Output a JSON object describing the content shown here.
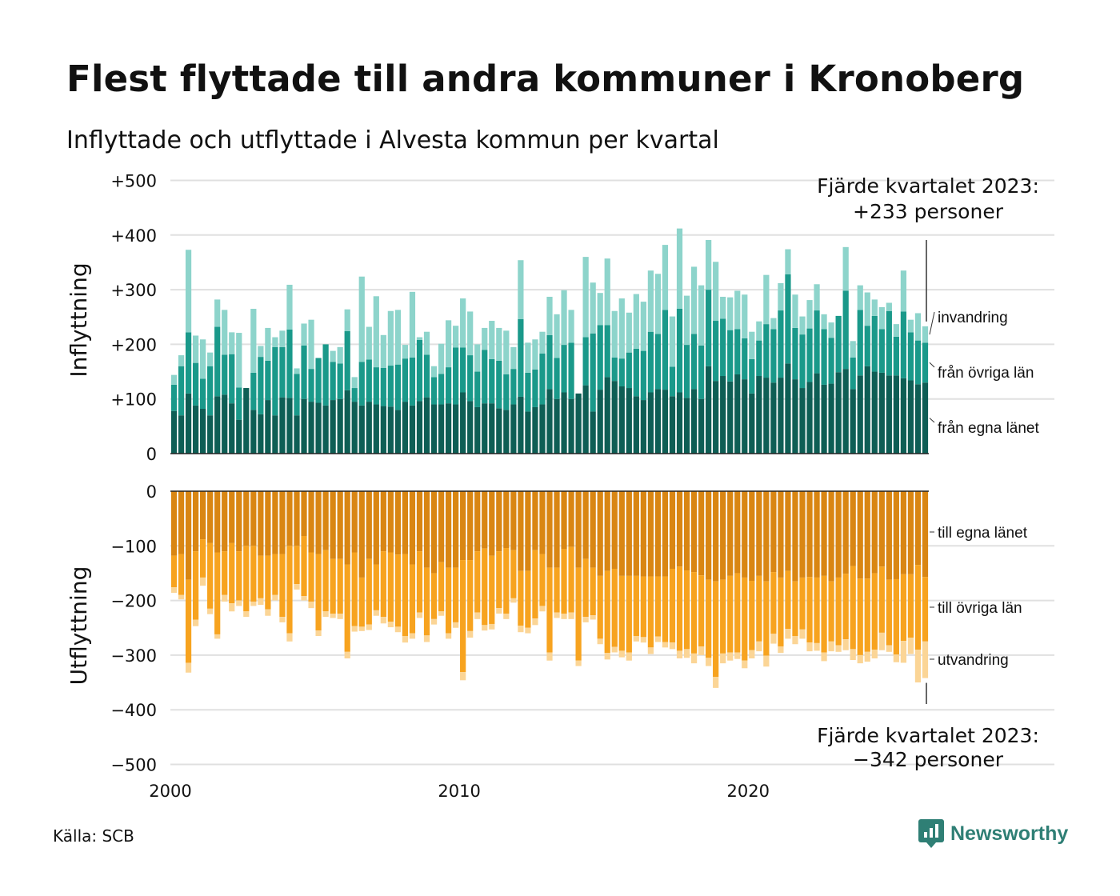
{
  "title": "Flest flyttade till andra kommuner i Kronoberg",
  "subtitle": "Inflyttade och utflyttade i Alvesta kommun per kvartal",
  "source": "Källa: SCB",
  "brand": "Newsworthy",
  "colors": {
    "in_own": "#0e5e55",
    "in_other": "#1a998a",
    "in_immig": "#8dd4cb",
    "out_own": "#d98613",
    "out_other": "#f7a31f",
    "out_emig": "#fbd596",
    "grid": "#e0e0e0",
    "brand": "#2f7f75"
  },
  "chart_data": {
    "type": "bar",
    "stacked": true,
    "x_start": "2000 Q1",
    "x_ticks": [
      "2000",
      "2010",
      "2020"
    ],
    "panels": [
      {
        "ylabel": "Inflyttning",
        "ylim": [
          0,
          500
        ],
        "yticks": [
          "0",
          "+100",
          "+200",
          "+300",
          "+400",
          "+500"
        ],
        "series": [
          {
            "name": "från egna länet",
            "values": [
              78,
              70,
              110,
              88,
              82,
              70,
              105,
              108,
              92,
              62,
              120,
              80,
              72,
              98,
              70,
              103,
              102,
              70,
              100,
              95,
              93,
              88,
              98,
              100,
              116,
              95,
              88,
              95,
              90,
              87,
              86,
              80,
              95,
              88,
              96,
              103,
              90,
              90,
              92,
              90,
              112,
              96,
              85,
              92,
              92,
              83,
              80,
              90,
              104,
              77,
              85,
              90,
              118,
              100,
              112,
              100,
              110,
              125,
              77,
              117,
              140,
              133,
              123,
              120,
              105,
              98,
              112,
              118,
              117,
              105,
              112,
              102,
              118,
              100,
              160,
              133,
              142,
              132,
              145,
              136,
              110,
              142,
              139,
              130,
              139,
              165,
              136,
              120,
              131,
              147,
              126,
              128,
              149,
              155,
              118,
              143,
              160,
              150,
              148,
              143,
              143,
              138,
              134,
              127,
              130
            ]
          },
          {
            "name": "från övriga län",
            "values": [
              48,
              90,
              112,
              78,
              55,
              90,
              127,
              73,
              90,
              59,
              0,
              68,
              105,
              72,
              125,
              92,
              125,
              76,
              98,
              60,
              82,
              112,
              70,
              65,
              108,
              25,
              80,
              77,
              68,
              70,
              75,
              83,
              79,
              88,
              112,
              78,
              50,
              56,
              66,
              104,
              82,
              84,
              65,
              98,
              81,
              87,
              65,
              65,
              142,
              71,
              69,
              93,
              99,
              75,
              87,
              103,
              0,
              88,
              143,
              118,
              95,
              43,
              51,
              65,
              87,
              90,
              111,
              101,
              146,
              54,
              153,
              97,
              101,
              98,
              140,
              110,
              105,
              94,
              83,
              75,
              63,
              65,
              98,
              98,
              123,
              163,
              94,
              98,
              98,
              115,
              102,
              84,
              103,
              143,
              58,
              120,
              74,
              102,
              80,
              118,
              71,
              122,
              88,
              80,
              73
            ]
          },
          {
            "name": "invandring",
            "values": [
              18,
              20,
              151,
              50,
              72,
              25,
              50,
              82,
              40,
              100,
              0,
              117,
              20,
              60,
              18,
              30,
              82,
              10,
              40,
              90,
              0,
              0,
              20,
              30,
              40,
              20,
              156,
              60,
              130,
              60,
              100,
              100,
              25,
              120,
              5,
              42,
              20,
              55,
              86,
              40,
              90,
              80,
              50,
              40,
              70,
              60,
              80,
              40,
              108,
              55,
              55,
              40,
              70,
              80,
              100,
              60,
              0,
              147,
              93,
              59,
              122,
              85,
              110,
              73,
              100,
              90,
              112,
              110,
              119,
              92,
              147,
              90,
              123,
              110,
              91,
              108,
              40,
              60,
              70,
              80,
              50,
              35,
              90,
              20,
              50,
              46,
              61,
              33,
              52,
              48,
              27,
              28,
              0,
              80,
              30,
              45,
              61,
              30,
              40,
              15,
              23,
              75,
              23,
              50,
              30
            ]
          }
        ]
      },
      {
        "ylabel": "Utflyttning",
        "ylim": [
          -500,
          0
        ],
        "yticks": [
          "0",
          "−100",
          "−200",
          "−300",
          "−400",
          "−500"
        ],
        "series": [
          {
            "name": "till egna länet",
            "values": [
              -118,
              -115,
              -162,
              -110,
              -88,
              -95,
              -112,
              -110,
              -95,
              -110,
              -100,
              -100,
              -118,
              -118,
              -115,
              -115,
              -100,
              -100,
              -82,
              -112,
              -115,
              -108,
              -124,
              -124,
              -134,
              -112,
              -158,
              -124,
              -134,
              -110,
              -112,
              -116,
              -115,
              -134,
              -110,
              -140,
              -150,
              -130,
              -140,
              -140,
              -126,
              -126,
              -110,
              -105,
              -118,
              -110,
              -104,
              -108,
              -146,
              -146,
              -108,
              -115,
              -140,
              -140,
              -106,
              -102,
              -140,
              -124,
              -140,
              -155,
              -146,
              -142,
              -155,
              -155,
              -155,
              -156,
              -156,
              -156,
              -156,
              -142,
              -138,
              -145,
              -148,
              -154,
              -162,
              -165,
              -162,
              -155,
              -150,
              -158,
              -164,
              -155,
              -165,
              -148,
              -158,
              -146,
              -165,
              -158,
              -157,
              -158,
              -155,
              -165,
              -158,
              -151,
              -137,
              -160,
              -160,
              -150,
              -138,
              -162,
              -161,
              -152,
              -152,
              -135,
              -157
            ]
          },
          {
            "name": "till övriga län",
            "values": [
              -58,
              -75,
              -152,
              -125,
              -70,
              -120,
              -150,
              -80,
              -110,
              -90,
              -120,
              -102,
              -78,
              -98,
              -75,
              -115,
              -160,
              -70,
              -110,
              -90,
              -140,
              -112,
              -100,
              -100,
              -160,
              -135,
              -90,
              -120,
              -84,
              -120,
              -127,
              -132,
              -150,
              -126,
              -112,
              -124,
              -84,
              -90,
              -120,
              -100,
              -205,
              -130,
              -112,
              -140,
              -125,
              -104,
              -120,
              -88,
              -100,
              -104,
              -125,
              -95,
              -155,
              -82,
              -118,
              -120,
              -170,
              -106,
              -87,
              -115,
              -150,
              -143,
              -137,
              -140,
              -110,
              -111,
              -130,
              -110,
              -120,
              -135,
              -154,
              -144,
              -149,
              -130,
              -143,
              -175,
              -135,
              -140,
              -145,
              -152,
              -127,
              -120,
              -136,
              -113,
              -126,
              -106,
              -100,
              -95,
              -120,
              -120,
              -140,
              -110,
              -124,
              -120,
              -152,
              -140,
              -134,
              -140,
              -121,
              -120,
              -138,
              -122,
              -116,
              -155,
              -118
            ]
          },
          {
            "name": "utvandring",
            "values": [
              -10,
              -8,
              -18,
              -12,
              -15,
              -10,
              -8,
              -12,
              -15,
              -10,
              -10,
              -8,
              -12,
              -12,
              -10,
              -10,
              -15,
              -10,
              -8,
              -12,
              -10,
              -10,
              -8,
              -10,
              -12,
              -10,
              -8,
              -10,
              -10,
              -12,
              -10,
              -10,
              -12,
              -10,
              -10,
              -12,
              -10,
              -8,
              -10,
              -10,
              -15,
              -12,
              -12,
              -10,
              -10,
              -10,
              -10,
              -8,
              -12,
              -10,
              -12,
              -10,
              -15,
              -10,
              -10,
              -12,
              -10,
              -10,
              -8,
              -10,
              -12,
              -10,
              -12,
              -15,
              -10,
              -10,
              -12,
              -10,
              -10,
              -12,
              -14,
              -16,
              -18,
              -16,
              -15,
              -20,
              -18,
              -15,
              -12,
              -14,
              -15,
              -18,
              -20,
              -18,
              -12,
              -18,
              -15,
              -17,
              -16,
              -14,
              -16,
              -18,
              -12,
              -20,
              -20,
              -15,
              -18,
              -16,
              -32,
              -12,
              -14,
              -40,
              -30,
              -60,
              -67
            ]
          }
        ]
      }
    ],
    "annotations": {
      "in_header": "Fjärde kvartalet 2023:",
      "in_value": "+233 personer",
      "out_header": "Fjärde kvartalet 2023:",
      "out_value": "−342 personer"
    }
  }
}
